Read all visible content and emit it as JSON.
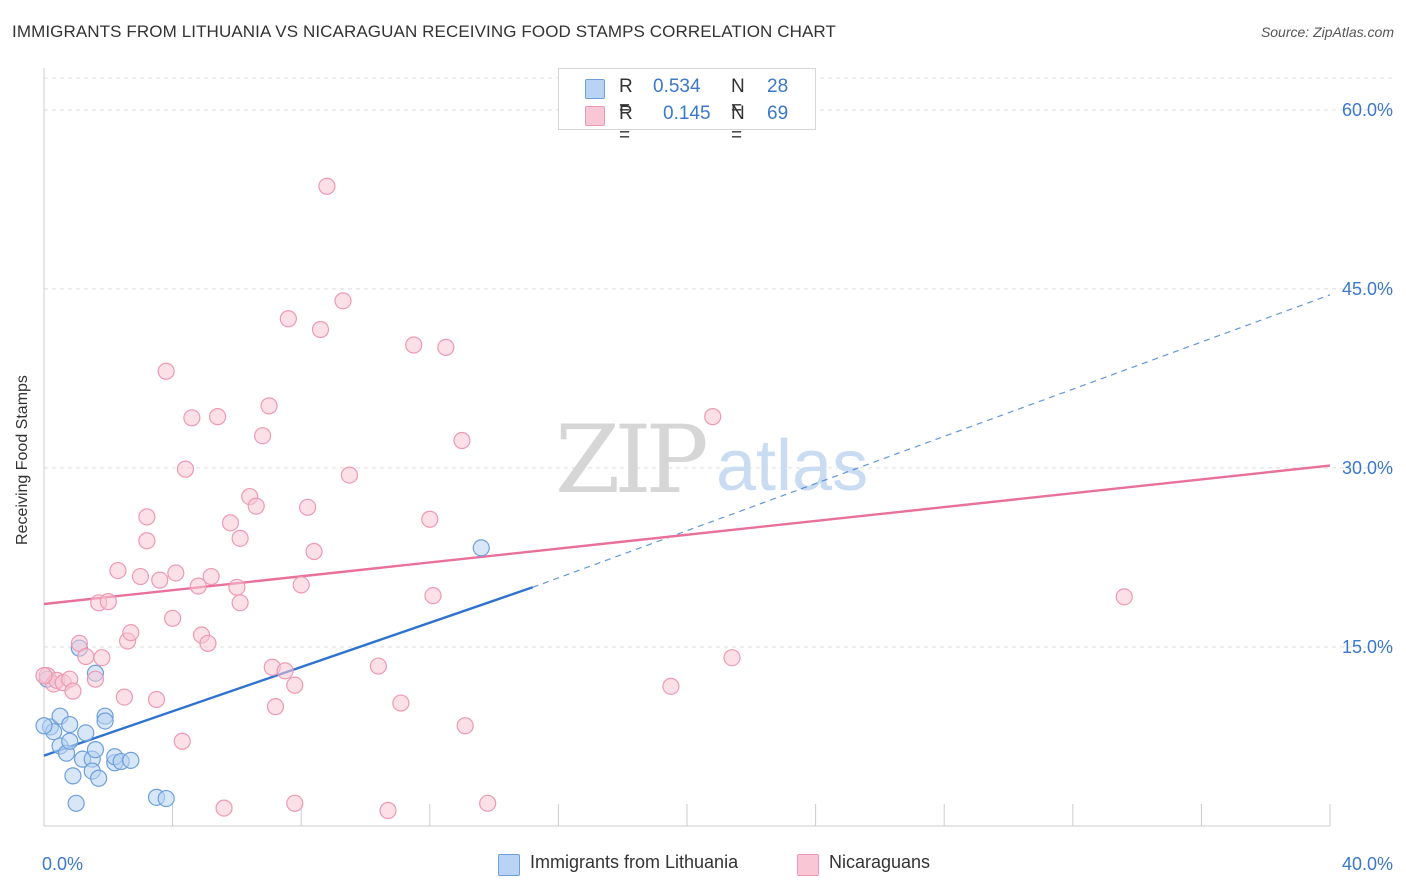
{
  "header": {
    "title": "IMMIGRANTS FROM LITHUANIA VS NICARAGUAN RECEIVING FOOD STAMPS CORRELATION CHART",
    "source": "Source: ZipAtlas.com"
  },
  "legend": {
    "r_label": "R =",
    "n_label": "N =",
    "series": [
      {
        "r": "0.534",
        "n": "28"
      },
      {
        "r": "0.145",
        "n": "69"
      }
    ]
  },
  "watermark": {
    "zip": "ZIP",
    "atlas": "atlas"
  },
  "colors": {
    "blue_fill": "#b8d3f3",
    "blue_stroke": "#6e9fdc",
    "blue_line": "#2f73cf",
    "pink_fill": "#f8c6d5",
    "pink_stroke": "#ec9ab3",
    "pink_line": "#e8709a",
    "tick_text": "#3b78c9"
  },
  "chart_data": {
    "type": "scatter",
    "title": "IMMIGRANTS FROM LITHUANIA VS NICARAGUAN RECEIVING FOOD STAMPS CORRELATION CHART",
    "xlabel": "",
    "ylabel": "Receiving Food Stamps",
    "xlim": [
      0,
      40
    ],
    "ylim": [
      0,
      62
    ],
    "x_tick_labels": [
      {
        "v": 0,
        "label": "0.0%"
      },
      {
        "v": 40,
        "label": "40.0%"
      }
    ],
    "y_tick_labels": [
      {
        "v": 15,
        "label": "15.0%"
      },
      {
        "v": 30,
        "label": "30.0%"
      },
      {
        "v": 45,
        "label": "45.0%"
      },
      {
        "v": 60,
        "label": "60.0%"
      }
    ],
    "grid_y": [
      15,
      30,
      45,
      60
    ],
    "x_minor_ticks": [
      4,
      8,
      12,
      16,
      20,
      24,
      28,
      32,
      36,
      40
    ],
    "legend_position": "top-center",
    "series": [
      {
        "name": "Immigrants from Lithuania",
        "color": "blue",
        "points": [
          [
            0.1,
            12.3
          ],
          [
            0.2,
            8.3
          ],
          [
            0.3,
            7.9
          ],
          [
            0.5,
            6.7
          ],
          [
            0.5,
            9.2
          ],
          [
            0.7,
            6.1
          ],
          [
            0.8,
            7.1
          ],
          [
            0.8,
            8.5
          ],
          [
            0.9,
            4.2
          ],
          [
            1.0,
            1.9
          ],
          [
            1.1,
            14.9
          ],
          [
            1.2,
            5.6
          ],
          [
            1.3,
            7.8
          ],
          [
            1.5,
            5.6
          ],
          [
            1.5,
            4.6
          ],
          [
            1.6,
            6.4
          ],
          [
            1.6,
            12.8
          ],
          [
            1.7,
            4.0
          ],
          [
            1.9,
            9.2
          ],
          [
            1.9,
            8.8
          ],
          [
            2.2,
            5.3
          ],
          [
            2.2,
            5.8
          ],
          [
            2.4,
            5.4
          ],
          [
            2.7,
            5.5
          ],
          [
            3.5,
            2.4
          ],
          [
            3.8,
            2.3
          ],
          [
            13.6,
            23.3
          ],
          [
            0.0,
            8.4
          ]
        ],
        "trend": {
          "x0": 0,
          "y0": 5.9,
          "x1": 15.2,
          "y1": 20.0,
          "dashed_to_x": 40,
          "dashed_to_y": 44.5
        }
      },
      {
        "name": "Nicaraguans",
        "color": "pink",
        "points": [
          [
            0.1,
            12.6
          ],
          [
            0.3,
            11.9
          ],
          [
            0.4,
            12.2
          ],
          [
            0.6,
            12.0
          ],
          [
            0.8,
            12.3
          ],
          [
            0.9,
            11.3
          ],
          [
            1.1,
            15.3
          ],
          [
            1.3,
            14.2
          ],
          [
            1.6,
            12.3
          ],
          [
            1.7,
            18.7
          ],
          [
            1.8,
            14.1
          ],
          [
            2.0,
            18.8
          ],
          [
            2.3,
            21.4
          ],
          [
            2.5,
            10.8
          ],
          [
            2.6,
            15.5
          ],
          [
            2.7,
            16.2
          ],
          [
            3.0,
            20.9
          ],
          [
            3.2,
            23.9
          ],
          [
            3.2,
            25.9
          ],
          [
            3.5,
            10.6
          ],
          [
            3.6,
            20.6
          ],
          [
            3.8,
            38.1
          ],
          [
            4.0,
            17.4
          ],
          [
            4.1,
            21.2
          ],
          [
            4.3,
            7.1
          ],
          [
            4.4,
            29.9
          ],
          [
            4.6,
            34.2
          ],
          [
            4.8,
            20.1
          ],
          [
            4.9,
            16.0
          ],
          [
            5.1,
            15.3
          ],
          [
            5.2,
            20.9
          ],
          [
            5.4,
            34.3
          ],
          [
            5.6,
            1.5
          ],
          [
            5.8,
            25.4
          ],
          [
            6.0,
            20.0
          ],
          [
            6.1,
            18.7
          ],
          [
            6.1,
            24.1
          ],
          [
            6.4,
            27.6
          ],
          [
            6.6,
            26.8
          ],
          [
            6.8,
            32.7
          ],
          [
            7.0,
            35.2
          ],
          [
            7.1,
            13.3
          ],
          [
            7.2,
            10.0
          ],
          [
            7.5,
            13.0
          ],
          [
            7.6,
            42.5
          ],
          [
            7.8,
            11.8
          ],
          [
            7.8,
            1.9
          ],
          [
            8.0,
            20.2
          ],
          [
            8.2,
            26.7
          ],
          [
            8.4,
            23.0
          ],
          [
            8.6,
            41.6
          ],
          [
            8.8,
            53.6
          ],
          [
            9.3,
            44.0
          ],
          [
            9.5,
            29.4
          ],
          [
            10.4,
            13.4
          ],
          [
            10.7,
            1.3
          ],
          [
            11.1,
            10.3
          ],
          [
            11.5,
            40.3
          ],
          [
            12.0,
            25.7
          ],
          [
            12.1,
            19.3
          ],
          [
            12.5,
            40.1
          ],
          [
            13.0,
            32.3
          ],
          [
            13.1,
            8.4
          ],
          [
            13.8,
            1.9
          ],
          [
            19.5,
            11.7
          ],
          [
            20.8,
            34.3
          ],
          [
            21.4,
            14.1
          ],
          [
            33.6,
            19.2
          ],
          [
            0.0,
            12.6
          ]
        ],
        "trend": {
          "x0": 0,
          "y0": 18.6,
          "x1": 40,
          "y1": 30.2
        }
      }
    ]
  },
  "bottom_legend": [
    {
      "label": "Immigrants from Lithuania"
    },
    {
      "label": "Nicaraguans"
    }
  ]
}
